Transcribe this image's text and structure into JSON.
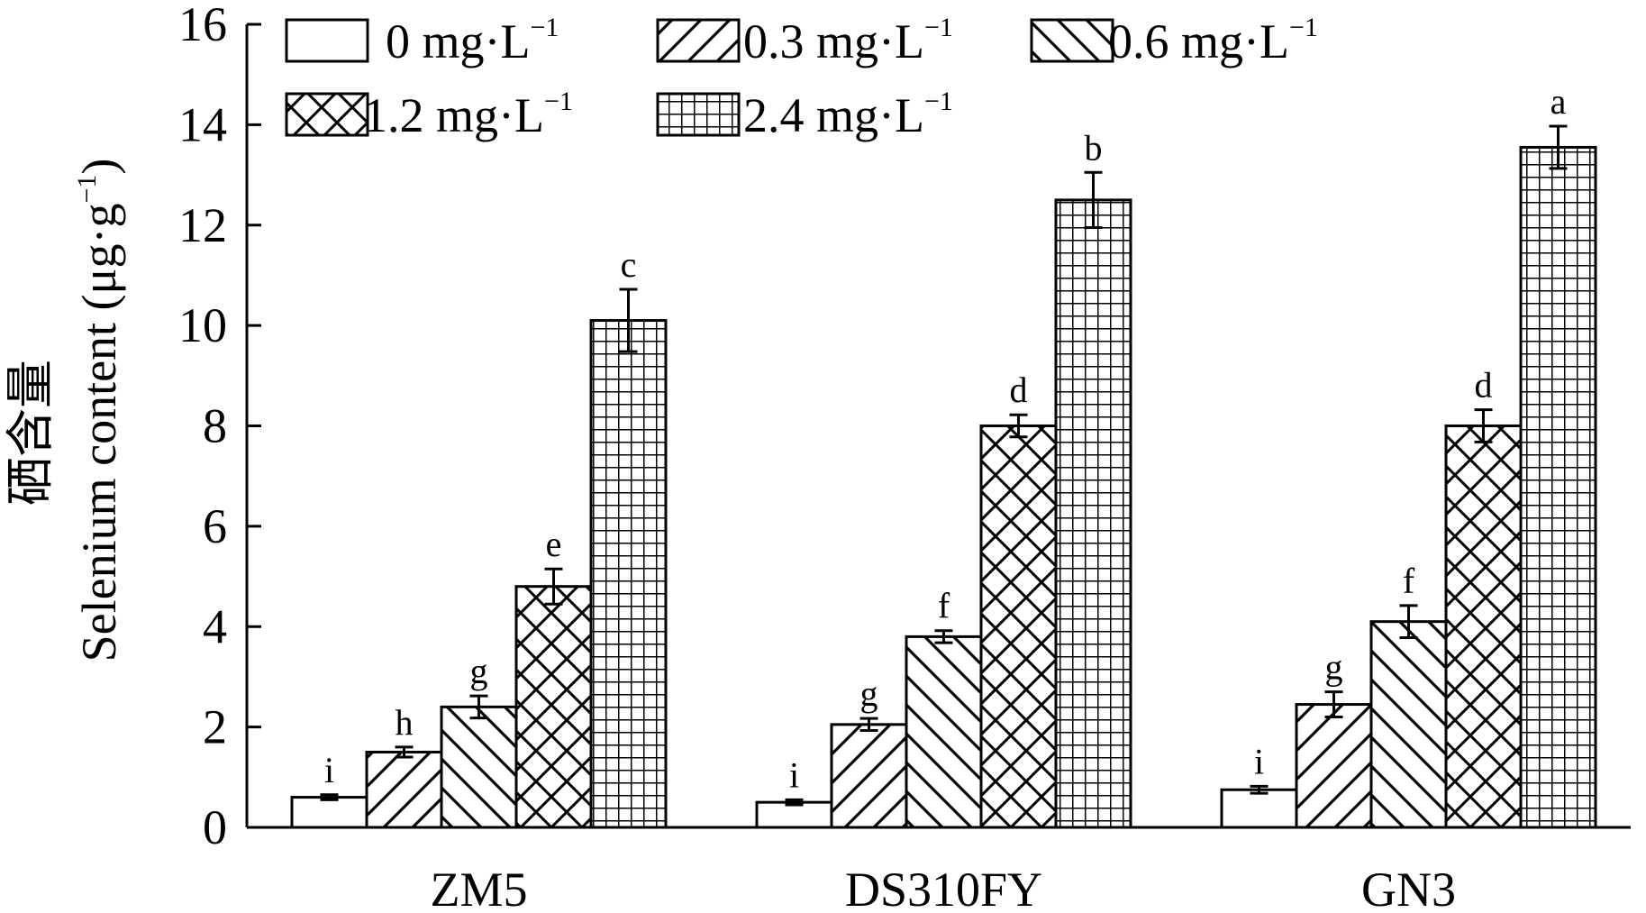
{
  "chart_data": {
    "type": "bar",
    "categories": [
      "ZM5",
      "DS310FY",
      "GN3"
    ],
    "series": [
      {
        "name": "0 mg·L−1",
        "pattern": "none",
        "values": [
          0.6,
          0.5,
          0.75
        ],
        "errors": [
          0.05,
          0.05,
          0.07
        ],
        "letters": [
          "i",
          "i",
          "i"
        ]
      },
      {
        "name": "0.3 mg·L−1",
        "pattern": "diag-fwd",
        "values": [
          1.5,
          2.05,
          2.45
        ],
        "errors": [
          0.1,
          0.12,
          0.25
        ],
        "letters": [
          "h",
          "g",
          "g"
        ]
      },
      {
        "name": "0.6 mg·L−1",
        "pattern": "diag-back",
        "values": [
          2.4,
          3.8,
          4.1
        ],
        "errors": [
          0.22,
          0.12,
          0.32
        ],
        "letters": [
          "g",
          "f",
          "f"
        ]
      },
      {
        "name": "1.2 mg·L−1",
        "pattern": "crosshatch",
        "values": [
          4.8,
          8.0,
          8.0
        ],
        "errors": [
          0.35,
          0.22,
          0.32
        ],
        "letters": [
          "e",
          "d",
          "d"
        ]
      },
      {
        "name": "2.4 mg·L−1",
        "pattern": "grid",
        "values": [
          10.1,
          12.5,
          13.55
        ],
        "errors": [
          0.62,
          0.55,
          0.42
        ],
        "letters": [
          "c",
          "b",
          "a"
        ]
      }
    ],
    "ylim": [
      0,
      16
    ],
    "yticks": [
      "0",
      "2",
      "4",
      "6",
      "8",
      "10",
      "12",
      "14",
      "16"
    ],
    "ylabel_cn": "硒含量",
    "ylabel_en_prefix": "Selenium content (μg·g",
    "ylabel_en_sup": "−1",
    "ylabel_en_suffix": ")",
    "xlabel": "",
    "title": "",
    "grid": false,
    "legend_position": "top-left"
  },
  "colors": {
    "bar_fill": "#ffffff",
    "stroke": "#000000"
  }
}
